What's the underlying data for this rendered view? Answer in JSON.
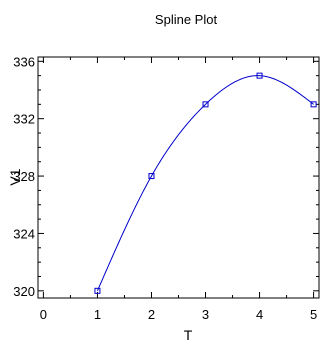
{
  "chart_data": {
    "type": "line",
    "title": "Spline Plot",
    "xlabel": "T",
    "ylabel": "V1",
    "xlim": [
      -0.1,
      5.1
    ],
    "ylim": [
      319.5,
      336.3
    ],
    "x_ticks": [
      0,
      1,
      2,
      3,
      4,
      5
    ],
    "y_ticks": [
      320,
      324,
      328,
      332,
      336
    ],
    "grid": false,
    "series": [
      {
        "x": [
          1,
          2,
          3,
          4,
          5
        ],
        "values": [
          320,
          328,
          333,
          335,
          333
        ],
        "color": "#0000cc",
        "marker": "square",
        "interpolation": "spline"
      }
    ]
  }
}
